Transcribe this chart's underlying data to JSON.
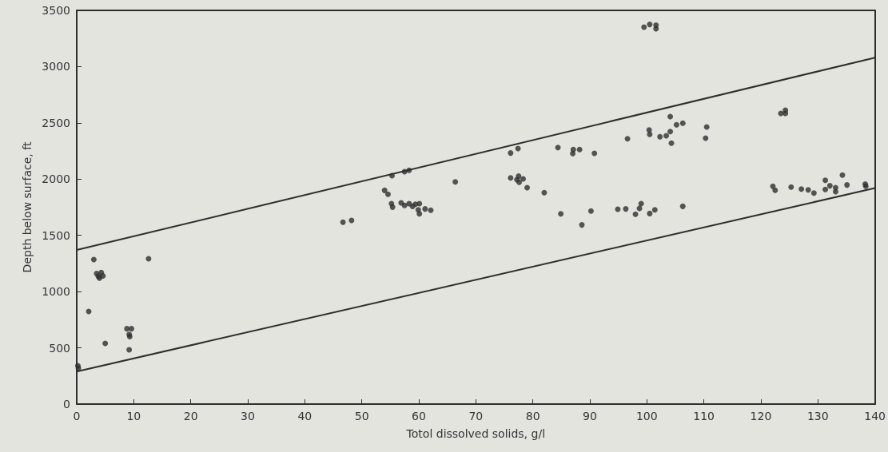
{
  "chart_data": {
    "type": "scatter",
    "xlabel": "Totol dissolved solids, g/l",
    "ylabel": "Depth below surface, ft",
    "xlim": [
      0,
      140
    ],
    "ylim": [
      0,
      3500
    ],
    "xticks": [
      0,
      10,
      20,
      30,
      40,
      50,
      60,
      70,
      80,
      90,
      100,
      110,
      120,
      130,
      140
    ],
    "yticks": [
      0,
      500,
      1000,
      1500,
      2000,
      2500,
      3000,
      3500
    ],
    "grid": false,
    "marker": "circle",
    "series": [
      {
        "color": "#2e2e2e",
        "x": [
          0.2,
          0.3,
          2.1,
          3.0,
          3.5,
          3.8,
          4.0,
          4.3,
          4.6,
          5.0,
          8.8,
          9.2,
          9.3,
          9.6,
          9.2,
          12.6,
          46.7,
          48.2,
          54.0,
          54.6,
          55.2,
          55.3,
          55.4,
          56.9,
          57.5,
          57.5,
          58.3,
          58.3,
          58.9,
          59.4,
          59.9,
          60.1,
          60.1,
          61.1,
          62.1,
          66.4,
          76.1,
          76.1,
          77.2,
          77.4,
          77.5,
          77.6,
          78.3,
          79.0,
          82.0,
          84.4,
          84.9,
          87.0,
          87.1,
          88.2,
          88.6,
          90.2,
          90.8,
          94.9,
          96.3,
          96.6,
          98.0,
          98.7,
          99.0,
          99.5,
          100.4,
          100.5,
          100.5,
          100.5,
          101.4,
          101.6,
          101.6,
          102.3,
          103.4,
          104.1,
          104.1,
          104.3,
          105.2,
          106.3,
          106.3,
          110.3,
          110.5,
          122.1,
          122.5,
          123.5,
          124.3,
          124.3,
          125.3,
          127.1,
          128.3,
          129.3,
          131.3,
          131.3,
          132.1,
          133.1,
          133.1,
          134.3,
          135.1,
          138.3,
          138.4
        ],
        "values": [
          341,
          320,
          824,
          1285,
          1160,
          1135,
          1120,
          1170,
          1140,
          540,
          670,
          620,
          600,
          670,
          483,
          1292,
          1617,
          1633,
          1900,
          1865,
          1782,
          2031,
          1751,
          1789,
          1766,
          2066,
          1782,
          2078,
          1758,
          1777,
          1727,
          1782,
          1692,
          1735,
          1723,
          1976,
          2232,
          2011,
          1995,
          2272,
          2026,
          1972,
          2002,
          1924,
          1879,
          2281,
          1692,
          2227,
          2263,
          2263,
          1593,
          1716,
          2229,
          1732,
          1735,
          2359,
          1688,
          1740,
          1782,
          3351,
          2437,
          2398,
          3375,
          1694,
          1727,
          3368,
          3337,
          2376,
          2386,
          2423,
          2556,
          2320,
          2483,
          2497,
          1758,
          2364,
          2464,
          1936,
          1901,
          2584,
          2613,
          2584,
          1929,
          1912,
          1905,
          1876,
          1990,
          1908,
          1941,
          1924,
          1889,
          2036,
          1948,
          1955,
          1936
        ]
      },
      {
        "type": "line",
        "marker": "none",
        "color": "#2e2e2e",
        "x": [
          0,
          140
        ],
        "values": [
          1370,
          3080
        ]
      },
      {
        "type": "line",
        "marker": "none",
        "color": "#2e2e2e",
        "x": [
          0,
          140
        ],
        "values": [
          290,
          1920
        ]
      }
    ]
  }
}
